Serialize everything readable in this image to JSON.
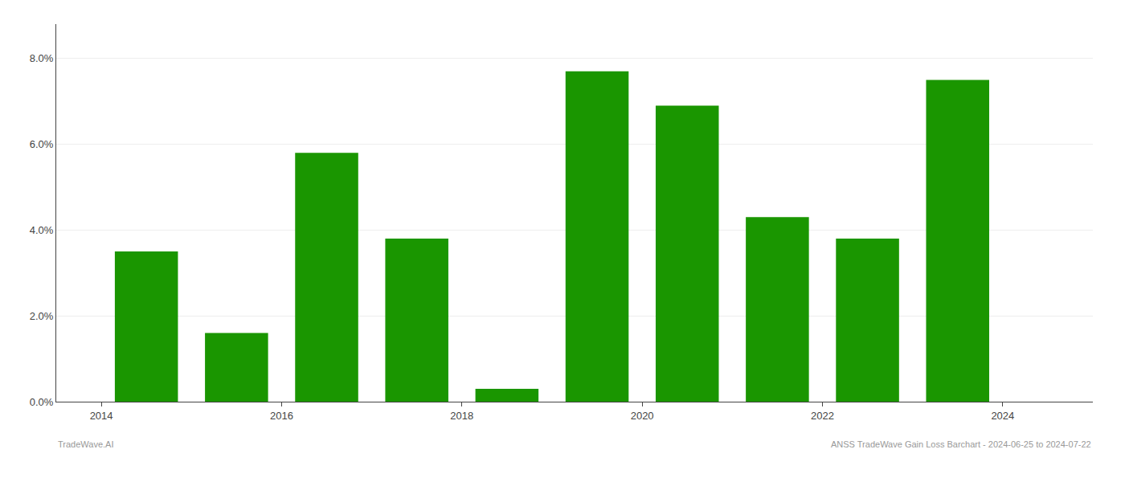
{
  "chart_data": {
    "type": "bar",
    "title": "ANSS TradeWave Gain Loss Barchart - 2024-06-25 to 2024-07-22",
    "annotations": [
      "TradeWave.AI"
    ],
    "x": [
      2014,
      2015,
      2016,
      2017,
      2018,
      2019,
      2020,
      2021,
      2022,
      2023
    ],
    "values": [
      0.035,
      0.016,
      0.058,
      0.038,
      0.003,
      0.077,
      0.069,
      0.043,
      0.038,
      0.075
    ],
    "color": "#1a9600",
    "xlim": [
      2013.0,
      2024.5
    ],
    "xticks": [
      {
        "value": 2013.5,
        "label": "2014"
      },
      {
        "value": 2015.5,
        "label": "2016"
      },
      {
        "value": 2017.5,
        "label": "2018"
      },
      {
        "value": 2019.5,
        "label": "2020"
      },
      {
        "value": 2021.5,
        "label": "2022"
      },
      {
        "value": 2023.5,
        "label": "2024"
      }
    ],
    "ylim": [
      0,
      0.088
    ],
    "yticks": [
      {
        "value": 0.0,
        "label": "0.0%"
      },
      {
        "value": 0.02,
        "label": "2.0%"
      },
      {
        "value": 0.04,
        "label": "4.0%"
      },
      {
        "value": 0.06,
        "label": "6.0%"
      },
      {
        "value": 0.08,
        "label": "8.0%"
      }
    ],
    "grid": true
  }
}
